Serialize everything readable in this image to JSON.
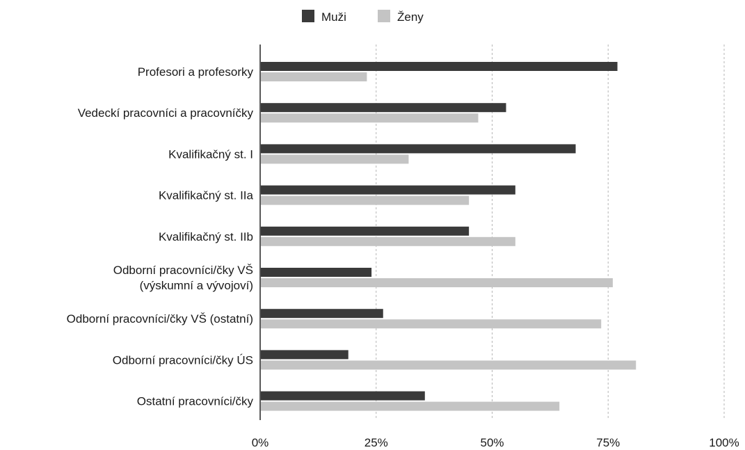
{
  "chart_data": {
    "type": "bar",
    "orientation": "horizontal",
    "categories": [
      [
        "Profesori a profesorky"
      ],
      [
        "Vedeckí pracovníci a pracovníčky"
      ],
      [
        "Kvalifikačný st. I"
      ],
      [
        "Kvalifikačný st. IIa"
      ],
      [
        "Kvalifikačný st. IIb"
      ],
      [
        "Odborní pracovníci/čky VŠ",
        "(výskumní a vývojoví)"
      ],
      [
        "Odborní pracovníci/čky VŠ (ostatní)"
      ],
      [
        "Odborní pracovníci/čky ÚS"
      ],
      [
        "Ostatní pracovníci/čky"
      ]
    ],
    "series": [
      {
        "name": "Muži",
        "color": "#3a3a3a",
        "values": [
          77,
          53,
          68,
          55,
          45,
          24,
          26.5,
          19,
          35.5
        ]
      },
      {
        "name": "Ženy",
        "color": "#c4c4c4",
        "values": [
          23,
          47,
          32,
          45,
          55,
          76,
          73.5,
          81,
          64.5
        ]
      }
    ],
    "xlim": [
      0,
      100
    ],
    "xticks": [
      "0%",
      "25%",
      "50%",
      "75%",
      "100%"
    ],
    "grid": "vertical dashed",
    "legend_position": "top-center"
  }
}
